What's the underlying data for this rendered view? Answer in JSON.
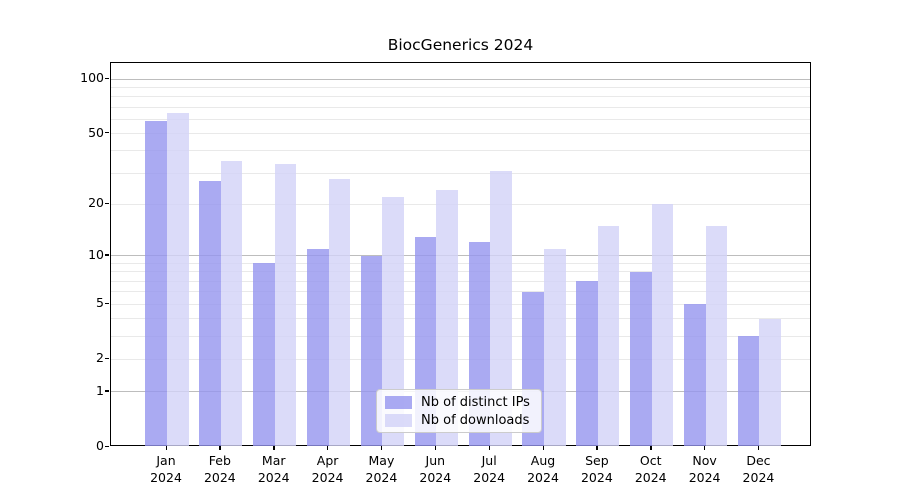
{
  "title": "BiocGenerics 2024",
  "chart_data": {
    "type": "bar",
    "title": "BiocGenerics 2024",
    "categories": [
      "Jan 2024",
      "Feb 2024",
      "Mar 2024",
      "Apr 2024",
      "May 2024",
      "Jun 2024",
      "Jul 2024",
      "Aug 2024",
      "Sep 2024",
      "Oct 2024",
      "Nov 2024",
      "Dec 2024"
    ],
    "series": [
      {
        "name": "Nb of distinct IPs",
        "color": "#9595efcc",
        "values": [
          59,
          27,
          9,
          11,
          10,
          13,
          12,
          6,
          7,
          8,
          5,
          3
        ]
      },
      {
        "name": "Nb of downloads",
        "color": "#d2d2f8cc",
        "values": [
          65,
          35,
          34,
          28,
          22,
          24,
          31,
          11,
          15,
          20,
          15,
          4
        ]
      }
    ],
    "xlabel": "",
    "ylabel": "",
    "yscale": "log1p",
    "ylim": [
      0,
      122.5
    ],
    "y_tick_values": [
      0,
      1,
      2,
      5,
      10,
      20,
      50,
      100
    ],
    "gridlines": {
      "major": [
        1,
        10,
        100
      ],
      "minor": [
        2,
        3,
        4,
        5,
        6,
        7,
        8,
        9,
        20,
        30,
        40,
        50,
        60,
        70,
        80,
        90
      ],
      "major_color": "#bdbdbd",
      "minor_color": "#e9e9e9"
    },
    "legend": {
      "position": "lower center",
      "items": [
        "Nb of distinct IPs",
        "Nb of downloads"
      ]
    }
  }
}
